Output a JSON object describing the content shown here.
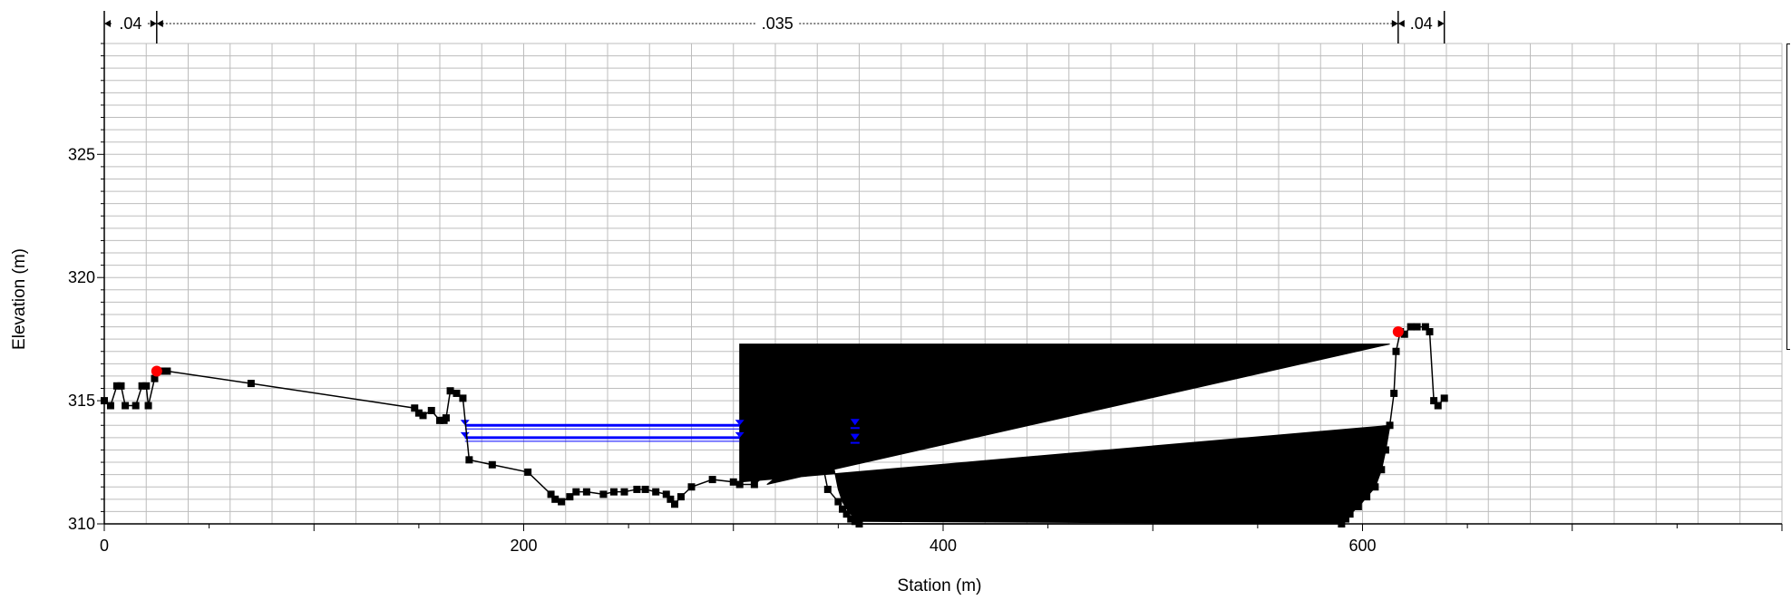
{
  "chart_data": {
    "type": "line",
    "xlabel": "Station (m)",
    "ylabel": "Elevation (m)",
    "xlim": [
      0,
      800
    ],
    "ylim": [
      310,
      329.5
    ],
    "x_ticks": [
      0,
      200,
      400,
      600
    ],
    "y_ticks": [
      310,
      315,
      320,
      325
    ],
    "grid": true,
    "manning_n": [
      {
        "label": ".04",
        "from": 0,
        "to": 25
      },
      {
        "label": ".035",
        "from": 25,
        "to": 617
      },
      {
        "label": ".04",
        "from": 617,
        "to": 639
      }
    ],
    "ground": {
      "x": [
        0,
        3,
        6,
        8,
        10,
        15,
        18,
        20,
        21,
        24,
        26,
        28,
        30,
        70,
        148,
        150,
        152,
        156,
        160,
        162,
        163,
        165,
        168,
        171,
        174,
        185,
        202,
        213,
        215,
        218,
        222,
        225,
        230,
        238,
        243,
        248,
        254,
        258,
        263,
        268,
        270,
        272,
        275,
        280,
        290,
        300,
        303,
        310,
        318,
        325,
        330,
        335,
        340,
        345,
        350,
        352,
        354,
        356,
        358,
        360,
        590,
        592,
        594,
        598,
        602,
        606,
        609,
        611,
        613,
        615,
        616,
        618,
        620,
        623,
        626,
        630,
        632,
        634,
        636,
        639
      ],
      "y": [
        315.0,
        314.8,
        315.6,
        315.6,
        314.8,
        314.8,
        315.6,
        315.6,
        314.8,
        315.9,
        316.2,
        316.2,
        316.2,
        315.7,
        314.7,
        314.5,
        314.4,
        314.6,
        314.2,
        314.2,
        314.3,
        315.4,
        315.3,
        315.1,
        312.6,
        312.4,
        312.1,
        311.2,
        311.0,
        310.9,
        311.1,
        311.3,
        311.3,
        311.2,
        311.3,
        311.3,
        311.4,
        311.4,
        311.3,
        311.2,
        311.0,
        310.8,
        311.1,
        311.5,
        311.8,
        311.7,
        311.6,
        311.6,
        312.2,
        313.5,
        314.8,
        315.0,
        313.5,
        311.4,
        310.9,
        310.6,
        310.4,
        310.2,
        310.1,
        310.0,
        310.0,
        310.2,
        310.4,
        310.7,
        311.1,
        311.5,
        312.2,
        313.0,
        314.0,
        315.3,
        317.0,
        317.8,
        317.7,
        318.0,
        318.0,
        318.0,
        317.8,
        315.0,
        314.8,
        315.1
      ]
    },
    "bank_stations": [
      {
        "x": 25,
        "y": 316.2
      },
      {
        "x": 617,
        "y": 317.8
      }
    ],
    "obstruction": {
      "x": [
        303,
        303,
        613,
        316,
        325,
        330,
        335,
        340,
        345,
        350,
        352,
        354,
        356,
        358,
        360,
        590,
        592,
        594,
        598,
        602,
        606,
        609,
        611,
        613
      ],
      "y": [
        311.7,
        317.3,
        317.3,
        311.6,
        312.2,
        313.5,
        314.8,
        315.0,
        313.5,
        311.4,
        310.9,
        310.6,
        310.4,
        310.2,
        310.1,
        310.0,
        310.2,
        310.4,
        310.7,
        311.1,
        311.5,
        312.2,
        313.0,
        314.0
      ]
    },
    "water_surfaces": [
      {
        "x_start": 172,
        "x_end": 303,
        "y": 314.0
      },
      {
        "x_start": 172,
        "x_end": 303,
        "y": 313.5
      }
    ],
    "ws_markers": [
      {
        "x": 358,
        "y": 314.0
      },
      {
        "x": 358,
        "y": 313.4
      }
    ],
    "colors": {
      "ground": "#000000",
      "obstruction": "#000000",
      "water": "#0000ff",
      "bank": "#ff0000",
      "grid": "#bdbdbd"
    }
  }
}
